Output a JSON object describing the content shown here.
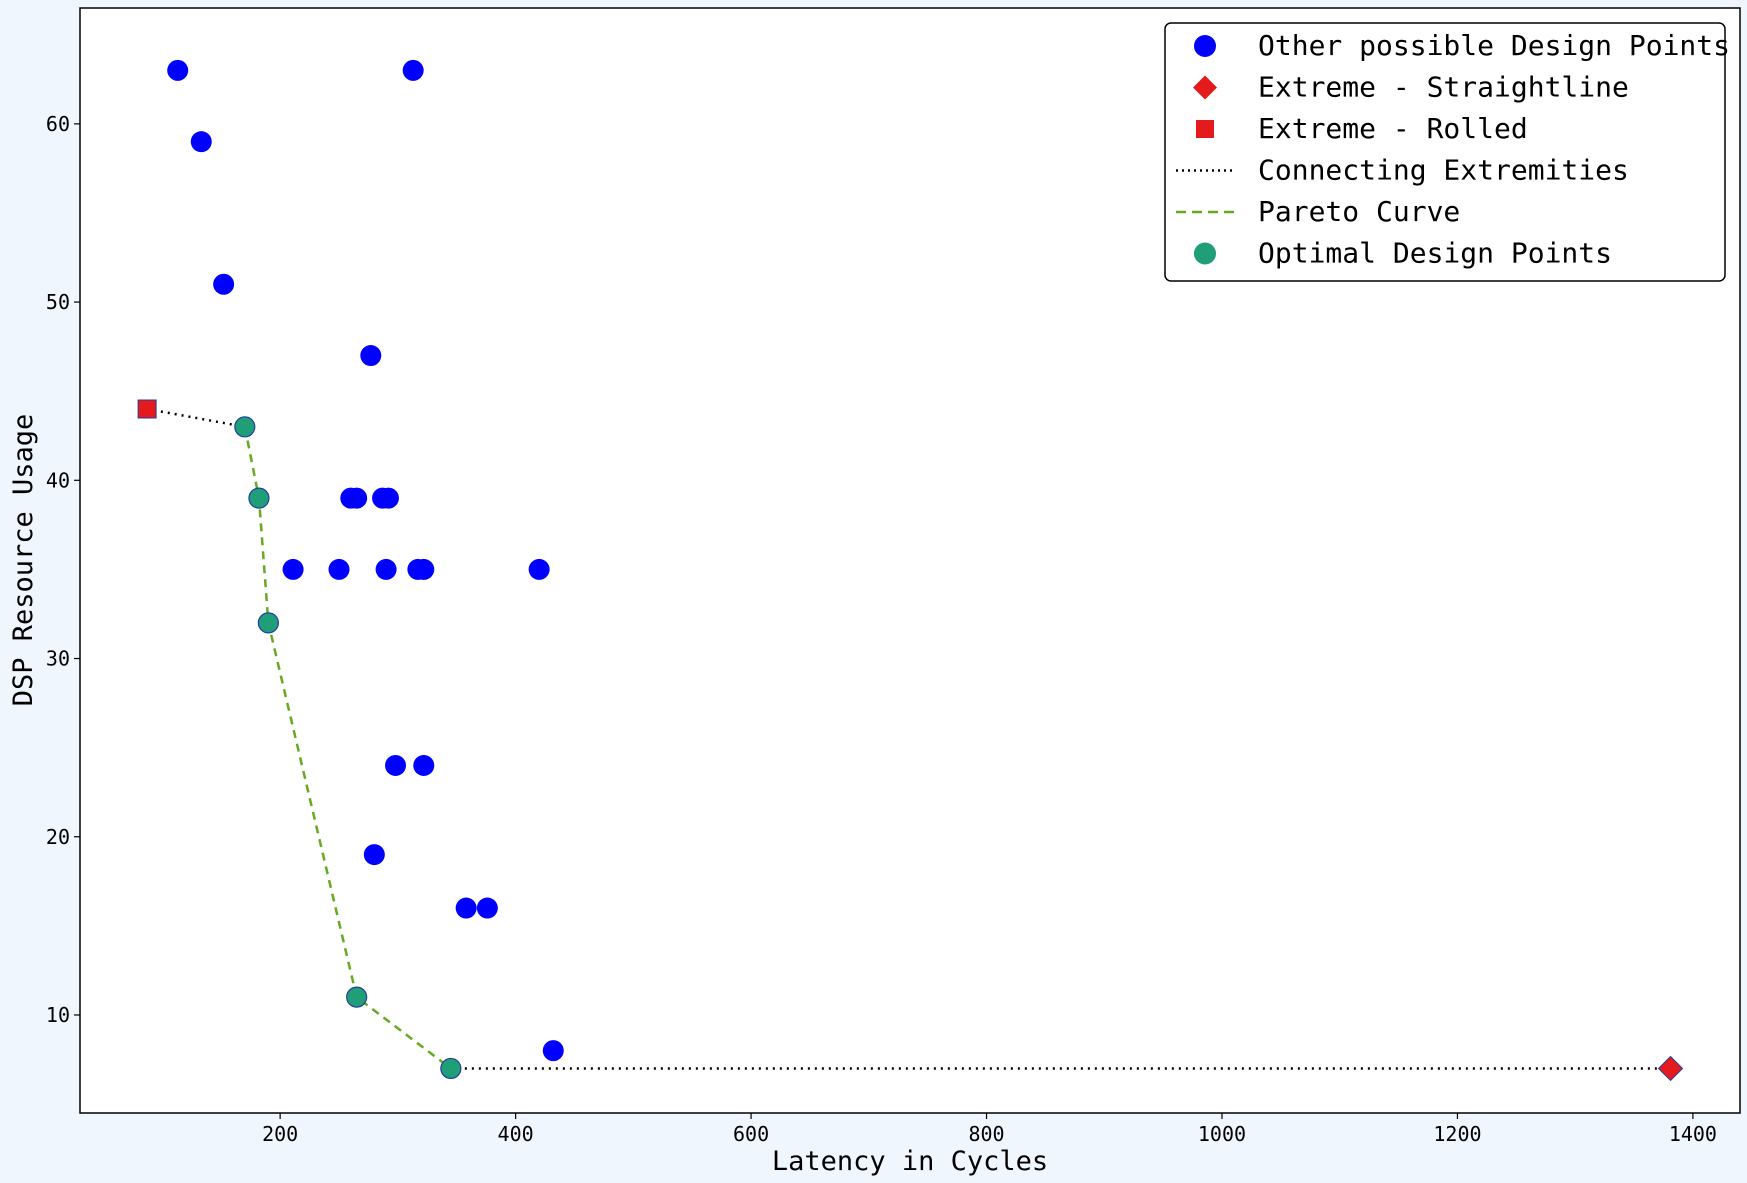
{
  "chart_data": {
    "type": "scatter",
    "xlabel": "Latency in Cycles",
    "ylabel": "DSP Resource Usage",
    "xlim": [
      30,
      1440
    ],
    "ylim": [
      4.5,
      66.5
    ],
    "xticks": [
      200,
      400,
      600,
      800,
      1000,
      1200,
      1400
    ],
    "yticks": [
      10,
      20,
      30,
      40,
      50,
      60
    ],
    "grid": false,
    "legend_position": "top-right",
    "legend": [
      {
        "label": "Other possible Design Points",
        "marker": "circle",
        "color": "#0000ff"
      },
      {
        "label": "Extreme - Straightline",
        "marker": "diamond",
        "color": "#e41a1c"
      },
      {
        "label": "Extreme - Rolled",
        "marker": "square",
        "color": "#e41a1c"
      },
      {
        "label": "Connecting Extremities",
        "marker": "dotted-line",
        "color": "#000000"
      },
      {
        "label": "Pareto Curve",
        "marker": "dashed-line",
        "color": "#66aa22"
      },
      {
        "label": "Optimal Design Points",
        "marker": "circle",
        "color": "#1f9e77"
      }
    ],
    "series": [
      {
        "name": "Other possible Design Points",
        "kind": "scatter",
        "color": "#0000ff",
        "points": [
          [
            113,
            63
          ],
          [
            313,
            63
          ],
          [
            133,
            59
          ],
          [
            152,
            51
          ],
          [
            277,
            47
          ],
          [
            260,
            39
          ],
          [
            265,
            39
          ],
          [
            287,
            39
          ],
          [
            292,
            39
          ],
          [
            211,
            35
          ],
          [
            250,
            35
          ],
          [
            290,
            35
          ],
          [
            317,
            35
          ],
          [
            322,
            35
          ],
          [
            420,
            35
          ],
          [
            298,
            24
          ],
          [
            322,
            24
          ],
          [
            280,
            19
          ],
          [
            358,
            16
          ],
          [
            376,
            16
          ],
          [
            432,
            8
          ]
        ]
      },
      {
        "name": "Extreme - Straightline",
        "kind": "scatter",
        "color": "#e41a1c",
        "points": [
          [
            1381,
            7
          ]
        ]
      },
      {
        "name": "Extreme - Rolled",
        "kind": "scatter",
        "color": "#e41a1c",
        "points": [
          [
            87,
            44
          ]
        ]
      },
      {
        "name": "Connecting Extremities",
        "kind": "line",
        "color": "#000000",
        "segments": [
          [
            [
              87,
              44
            ],
            [
              170,
              43
            ]
          ],
          [
            [
              345,
              7
            ],
            [
              1381,
              7
            ]
          ]
        ]
      },
      {
        "name": "Pareto Curve",
        "kind": "line",
        "color": "#66aa22",
        "points": [
          [
            170,
            43
          ],
          [
            182,
            39
          ],
          [
            190,
            32
          ],
          [
            265,
            11
          ],
          [
            345,
            7
          ]
        ]
      },
      {
        "name": "Optimal Design Points",
        "kind": "scatter",
        "color": "#1f9e77",
        "points": [
          [
            170,
            43
          ],
          [
            182,
            39
          ],
          [
            190,
            32
          ],
          [
            265,
            11
          ],
          [
            345,
            7
          ]
        ]
      }
    ]
  }
}
